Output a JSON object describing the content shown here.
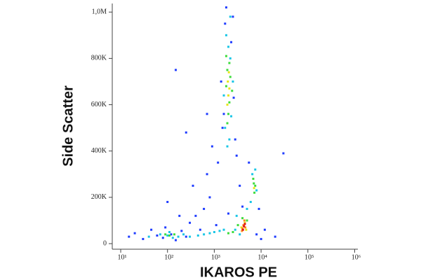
{
  "chart_data": {
    "type": "scatter",
    "xlabel": "IKAROS PE",
    "ylabel": "Side Scatter",
    "xscale": "log",
    "xlim": [
      6.6,
      1170000
    ],
    "ylim": [
      -24000,
      1037000
    ],
    "xticks": [
      {
        "value": 10,
        "label": "10¹"
      },
      {
        "value": 100,
        "label": "10²"
      },
      {
        "value": 1000,
        "label": "10³"
      },
      {
        "value": 10000,
        "label": "10⁴"
      },
      {
        "value": 100000,
        "label": "10⁵"
      },
      {
        "value": 1000000,
        "label": "10⁶"
      }
    ],
    "yticks": [
      0,
      {
        "value": 200000,
        "label": "200K"
      },
      {
        "value": 400000,
        "label": "400K"
      },
      {
        "value": 600000,
        "label": "600K"
      },
      {
        "value": 800000,
        "label": "800K"
      },
      {
        "value": 1000000,
        "label": "1,0M"
      }
    ],
    "series": [
      {
        "color": "#1f3cff",
        "x": [
          15,
          20,
          30,
          45,
          60,
          80,
          90,
          120,
          150,
          200,
          250,
          300,
          400,
          500,
          600,
          800,
          350,
          700,
          1200,
          900,
          1500,
          1700,
          2500,
          1400,
          2800,
          3000,
          4000,
          5500,
          9000,
          12000,
          20000,
          30000,
          100,
          180,
          1100,
          2000,
          250,
          150,
          700,
          3500,
          8000,
          10000,
          1800,
          2300,
          1600,
          2600
        ],
        "y": [
          30000,
          45000,
          20000,
          60000,
          35000,
          25000,
          70000,
          40000,
          15000,
          55000,
          30000,
          90000,
          120000,
          60000,
          150000,
          200000,
          250000,
          300000,
          350000,
          420000,
          500000,
          950000,
          980000,
          700000,
          450000,
          380000,
          160000,
          350000,
          150000,
          60000,
          30000,
          390000,
          180000,
          120000,
          80000,
          130000,
          480000,
          750000,
          560000,
          250000,
          40000,
          20000,
          1020000,
          870000,
          560000,
          630000
        ]
      },
      {
        "color": "#19c6e6",
        "x": [
          40,
          70,
          100,
          110,
          130,
          170,
          220,
          300,
          450,
          600,
          800,
          1000,
          1300,
          1600,
          1800,
          2000,
          2200,
          1700,
          2100,
          1900,
          2300,
          1600,
          2500,
          2200,
          3000,
          5000,
          6500,
          7500,
          8000,
          6000,
          3500,
          2800
        ],
        "y": [
          30000,
          40000,
          35000,
          50000,
          25000,
          30000,
          40000,
          30000,
          35000,
          40000,
          45000,
          50000,
          55000,
          60000,
          900000,
          850000,
          800000,
          500000,
          450000,
          420000,
          550000,
          640000,
          700000,
          980000,
          120000,
          150000,
          300000,
          320000,
          230000,
          180000,
          40000,
          60000
        ]
      },
      {
        "color": "#3ddc3d",
        "x": [
          90,
          110,
          140,
          1900,
          2100,
          1800,
          2200,
          2000,
          1900,
          2100,
          1800,
          2400,
          7000,
          7200,
          6800,
          7500,
          4000,
          5000,
          3200,
          2500,
          2000
        ],
        "y": [
          40000,
          35000,
          40000,
          750000,
          780000,
          680000,
          720000,
          560000,
          520000,
          610000,
          810000,
          660000,
          260000,
          220000,
          280000,
          250000,
          110000,
          100000,
          80000,
          50000,
          45000
        ]
      },
      {
        "color": "#e6e619",
        "x": [
          2000,
          1950,
          2100,
          1900,
          2050,
          7100,
          4500,
          3800,
          4800
        ],
        "y": [
          640000,
          700000,
          670000,
          600000,
          740000,
          240000,
          90000,
          70000,
          60000
        ]
      },
      {
        "color": "#ff8c1a",
        "x": [
          4200,
          4600,
          3900,
          4400,
          4000
        ],
        "y": [
          80000,
          70000,
          55000,
          100000,
          65000
        ]
      },
      {
        "color": "#e01010",
        "x": [
          4300,
          4100,
          4500
        ],
        "y": [
          75000,
          60000,
          85000
        ]
      }
    ]
  }
}
